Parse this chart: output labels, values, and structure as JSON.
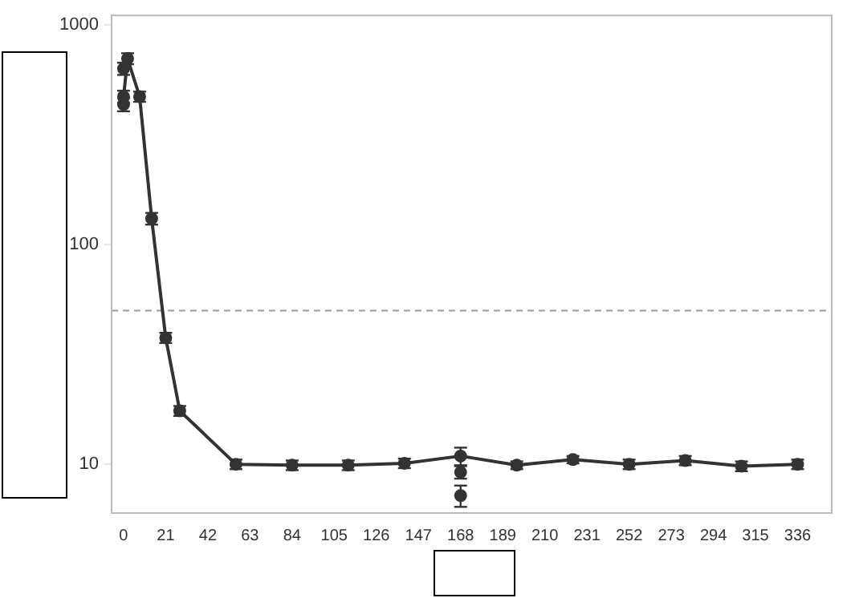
{
  "chart_data": {
    "type": "line",
    "series": [
      {
        "color": "#333333",
        "x": [
          0,
          2,
          8,
          14,
          21,
          28,
          56,
          84,
          112,
          140,
          168,
          196,
          224,
          252,
          280,
          308,
          336
        ],
        "values": [
          470,
          700,
          470,
          131,
          37.6,
          17.5,
          10,
          9.9,
          9.9,
          10.1,
          10.9,
          9.9,
          10.5,
          10,
          10.4,
          9.8,
          10
        ],
        "errors": [
          30,
          40,
          25,
          8,
          2,
          0.9,
          0.5,
          0.5,
          0.5,
          0.5,
          1,
          0.4,
          0.4,
          0.5,
          0.5,
          0.5,
          0.5
        ]
      },
      {
        "type": "scatter",
        "color": "#333333",
        "x": [
          0,
          0,
          168,
          168
        ],
        "values": [
          433,
          630,
          9.2,
          7.2
        ],
        "errors": [
          30,
          40,
          0.6,
          0.8
        ]
      }
    ],
    "log": "y",
    "xlim": [
      -6,
      353
    ],
    "ylim": [
      6,
      1100
    ],
    "xticks": [
      0,
      21,
      42,
      63,
      84,
      105,
      126,
      147,
      168,
      189,
      210,
      231,
      252,
      273,
      294,
      315,
      336
    ],
    "yticks": [
      10,
      100,
      1000
    ],
    "ref_lines": [
      {
        "axis": "y",
        "value": 50,
        "color": "#999999",
        "line_style": "dashed"
      }
    ],
    "grid": false,
    "legend": false,
    "marker": "circle",
    "line_style": "solid"
  }
}
